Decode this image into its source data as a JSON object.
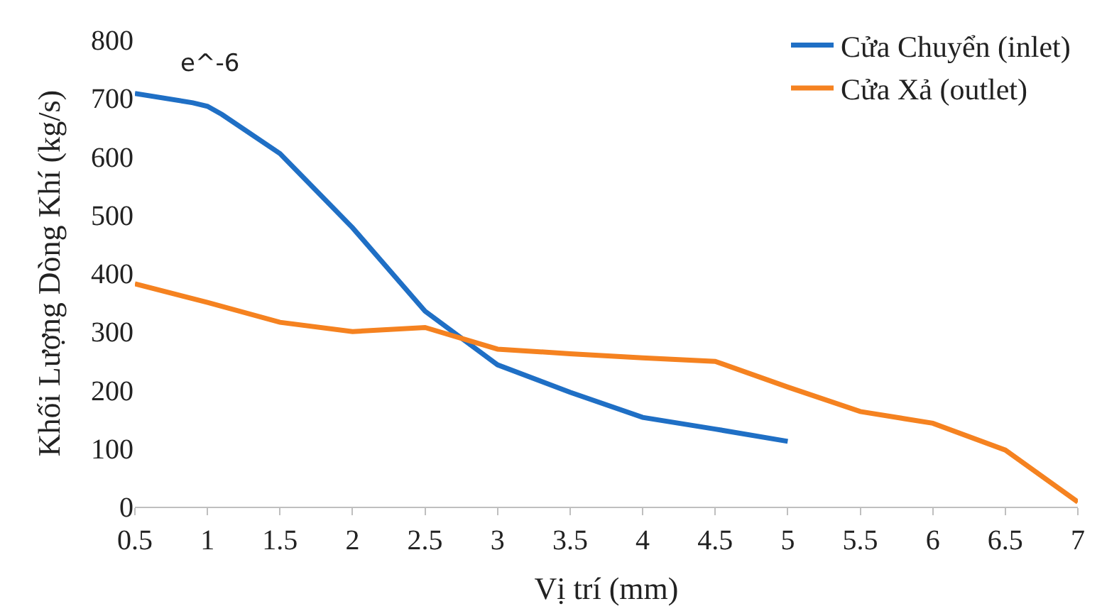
{
  "chart_data": {
    "type": "line",
    "xlabel": "Vị trí (mm)",
    "ylabel": "Khối Lượng Dòng Khí (kg/s)",
    "x": [
      0.5,
      1,
      1.5,
      2,
      2.5,
      3,
      3.5,
      4,
      4.5,
      5,
      5.5,
      6,
      6.5,
      7
    ],
    "series": [
      {
        "name": "Cửa Chuyển (inlet)",
        "color": "#1f6fc5",
        "x": [
          0.5,
          0.9,
          1,
          1.1,
          1.5,
          2,
          2.5,
          3,
          3.5,
          4,
          4.5,
          5
        ],
        "values": [
          708,
          692,
          686,
          672,
          605,
          478,
          335,
          243,
          196,
          153,
          133,
          112
        ]
      },
      {
        "name": "Cửa Xả (outlet)",
        "color": "#f58220",
        "values": [
          382,
          350,
          316,
          300,
          307,
          270,
          262,
          255,
          249,
          205,
          163,
          143,
          97,
          8
        ]
      }
    ],
    "xlim": [
      0.5,
      7
    ],
    "xticks": [
      0.5,
      1,
      1.5,
      2,
      2.5,
      3,
      3.5,
      4,
      4.5,
      5,
      5.5,
      6,
      6.5,
      7
    ],
    "ylim": [
      0,
      800
    ],
    "yticks": [
      0,
      100,
      200,
      300,
      400,
      500,
      600,
      700,
      800
    ],
    "annotations": [
      "e^-6"
    ],
    "legend": "top right",
    "marker": "none",
    "line_style": "solid"
  }
}
